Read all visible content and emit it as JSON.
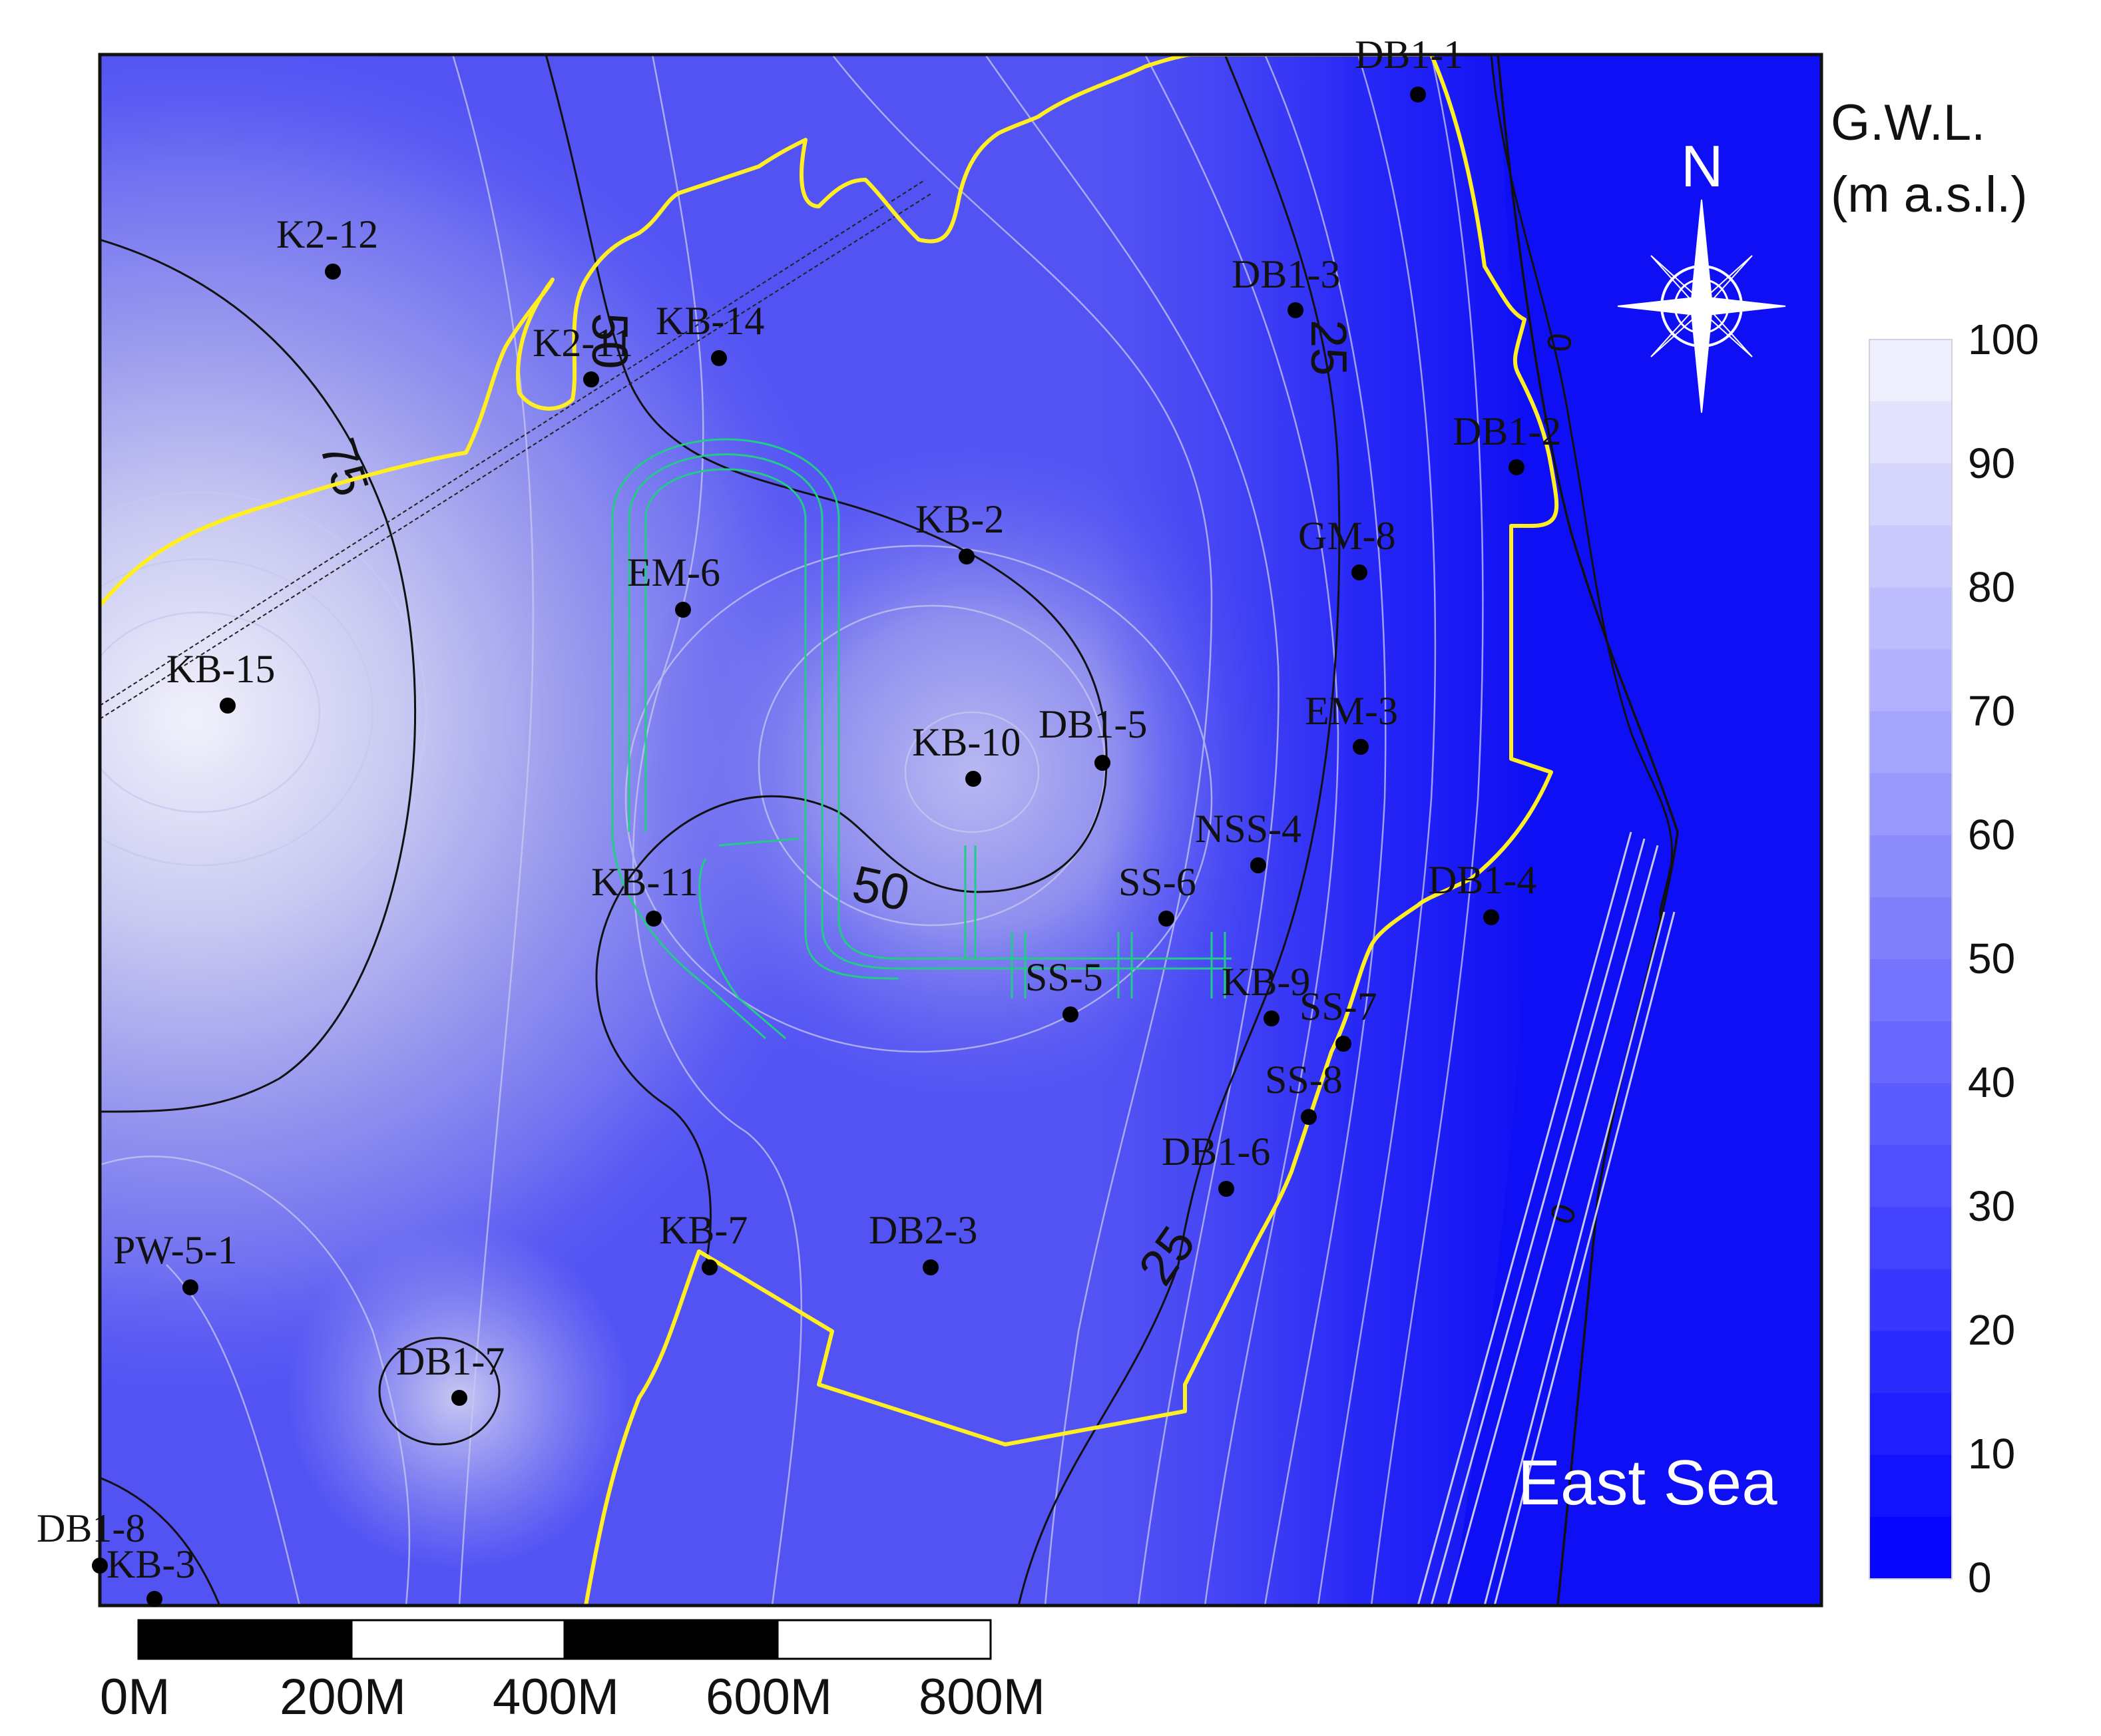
{
  "map": {
    "sea_label": "East Sea",
    "north_label": "N",
    "colors": {
      "sea": "#0f0ff5",
      "boundary": "#ffee22",
      "channel": "#22cc88",
      "contour_major": "#111111",
      "contour_minor": "#c8c8f0"
    },
    "contour_labels": [
      {
        "text": "75"
      },
      {
        "text": "50"
      },
      {
        "text": "50"
      },
      {
        "text": "25"
      },
      {
        "text": "25"
      },
      {
        "text": "0"
      },
      {
        "text": "0"
      }
    ],
    "wells": [
      {
        "name": "DB1-1"
      },
      {
        "name": "K2-12"
      },
      {
        "name": "DB1-3"
      },
      {
        "name": "K2-11"
      },
      {
        "name": "KB-14"
      },
      {
        "name": "DB1-2"
      },
      {
        "name": "KB-2"
      },
      {
        "name": "GM-8"
      },
      {
        "name": "EM-6"
      },
      {
        "name": "KB-15"
      },
      {
        "name": "EM-3"
      },
      {
        "name": "KB-10"
      },
      {
        "name": "DB1-5"
      },
      {
        "name": "NSS-4"
      },
      {
        "name": "KB-11"
      },
      {
        "name": "SS-6"
      },
      {
        "name": "DB1-4"
      },
      {
        "name": "SS-5"
      },
      {
        "name": "KB-9"
      },
      {
        "name": "SS-7"
      },
      {
        "name": "SS-8"
      },
      {
        "name": "DB1-6"
      },
      {
        "name": "KB-7"
      },
      {
        "name": "DB2-3"
      },
      {
        "name": "PW-5-1"
      },
      {
        "name": "DB1-7"
      },
      {
        "name": "DB1-8"
      },
      {
        "name": "KB-3"
      }
    ]
  },
  "legend": {
    "title_line1": "G.W.L.",
    "title_line2": "(m a.s.l.)",
    "ticks": [
      "100",
      "90",
      "80",
      "70",
      "60",
      "50",
      "40",
      "30",
      "20",
      "10",
      "0"
    ],
    "color_low": "#0000ff",
    "color_high": "#f4f4fc"
  },
  "scale_bar": {
    "labels": [
      "0M",
      "200M",
      "400M",
      "600M",
      "800M"
    ]
  }
}
